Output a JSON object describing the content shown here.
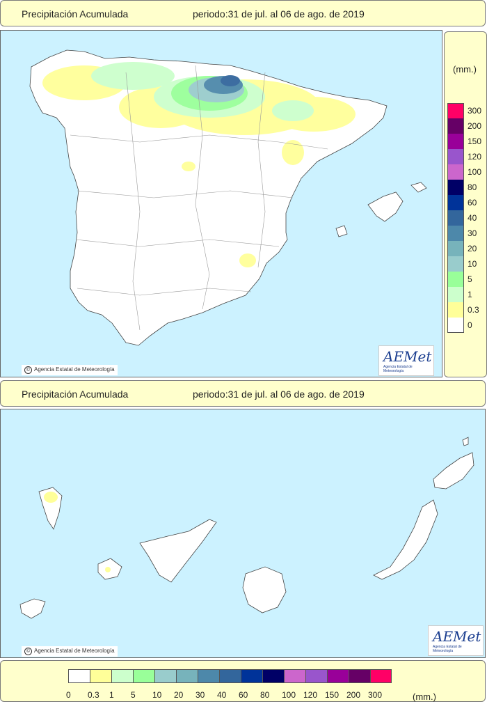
{
  "header_top": {
    "title": "Precipitación Acumulada",
    "period": "periodo:31 de jul. al 06 de ago. de 2019"
  },
  "header_bottom": {
    "title": "Precipitación Acumulada",
    "period": "periodo:31 de jul. al 06 de ago. de 2019"
  },
  "credit_text": "Agencia Estatal de Meteorología",
  "logo": {
    "word": "AEMet",
    "subtitle": "Agencia Estatal de Meteorología"
  },
  "legend": {
    "unit": "(mm.)",
    "bins": [
      {
        "label": "0",
        "color": "#ffffff"
      },
      {
        "label": "0.3",
        "color": "#ffff99"
      },
      {
        "label": "1",
        "color": "#ccffcc"
      },
      {
        "label": "5",
        "color": "#99ff99"
      },
      {
        "label": "10",
        "color": "#99cccc"
      },
      {
        "label": "20",
        "color": "#77b3bb"
      },
      {
        "label": "30",
        "color": "#4d88aa"
      },
      {
        "label": "40",
        "color": "#33669c"
      },
      {
        "label": "60",
        "color": "#003399"
      },
      {
        "label": "80",
        "color": "#000066"
      },
      {
        "label": "100",
        "color": "#cc66cc"
      },
      {
        "label": "120",
        "color": "#9955cc"
      },
      {
        "label": "150",
        "color": "#990099"
      },
      {
        "label": "200",
        "color": "#660066"
      },
      {
        "label": "300",
        "color": "#ff0066"
      }
    ]
  },
  "colors": {
    "sea": "#ccf2ff",
    "land": "#ffffff",
    "panel": "#ffffcc"
  }
}
